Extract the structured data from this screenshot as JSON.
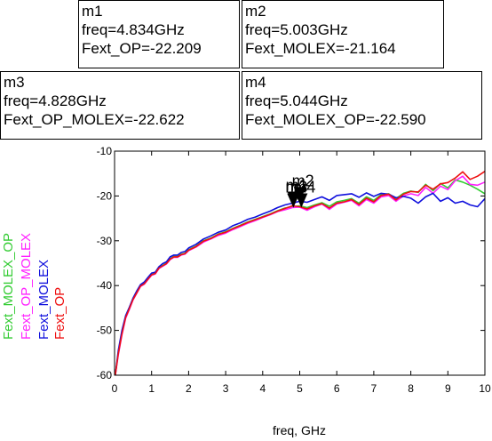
{
  "markers": [
    {
      "name": "m1",
      "freq": "freq=4.834GHz",
      "value": "Fext_OP=-22.209"
    },
    {
      "name": "m2",
      "freq": "freq=5.003GHz",
      "value": "Fext_MOLEX=-21.164"
    },
    {
      "name": "m3",
      "freq": "freq=4.828GHz",
      "value": "Fext_OP_MOLEX=-22.622"
    },
    {
      "name": "m4",
      "freq": "freq=5.044GHz",
      "value": "Fext_MOLEX_OP=-22.590"
    }
  ],
  "chart_data": {
    "type": "line",
    "xlabel": "freq, GHz",
    "ylabel": "",
    "xlim": [
      0,
      10
    ],
    "ylim": [
      -60,
      -10
    ],
    "xticks": [
      "0",
      "1",
      "2",
      "3",
      "4",
      "5",
      "6",
      "7",
      "8",
      "9",
      "10"
    ],
    "yticks": [
      "-10",
      "-20",
      "-30",
      "-40",
      "-50",
      "-60"
    ],
    "grid": false,
    "legend_placement": "left, rotated vertical",
    "series": [
      {
        "name": "Fext_MOLEX_OP",
        "color": "#33cc33",
        "x": [
          0.02,
          0.1,
          0.2,
          0.3,
          0.4,
          0.5,
          0.6,
          0.7,
          0.8,
          0.9,
          1.0,
          1.1,
          1.2,
          1.3,
          1.4,
          1.5,
          1.6,
          1.7,
          1.8,
          1.9,
          2.0,
          2.2,
          2.4,
          2.6,
          2.8,
          3.0,
          3.2,
          3.4,
          3.6,
          3.8,
          4.0,
          4.2,
          4.4,
          4.6,
          4.8,
          5.0,
          5.2,
          5.4,
          5.6,
          5.8,
          6.0,
          6.2,
          6.4,
          6.6,
          6.8,
          7.0,
          7.2,
          7.4,
          7.6,
          7.8,
          8.0,
          8.2,
          8.4,
          8.6,
          8.8,
          9.0,
          9.2,
          9.4,
          9.6,
          9.8,
          10.0
        ],
        "y": [
          -60,
          -55,
          -50.5,
          -47,
          -45,
          -43,
          -41.5,
          -40,
          -39.5,
          -38.5,
          -37.5,
          -37.2,
          -36,
          -35.5,
          -35,
          -34,
          -33.5,
          -33.5,
          -33,
          -32.8,
          -32,
          -31.2,
          -30,
          -29.4,
          -28.5,
          -28,
          -27.2,
          -26.5,
          -25.8,
          -25.2,
          -24.6,
          -24,
          -23.3,
          -22.7,
          -22.4,
          -22.2,
          -22.6,
          -22,
          -21.5,
          -22.3,
          -21.3,
          -21,
          -20.6,
          -21.6,
          -20.2,
          -21,
          -19.7,
          -19.5,
          -20.6,
          -19.4,
          -18.9,
          -19.2,
          -17.4,
          -18.8,
          -17.2,
          -18.2,
          -16.4,
          -16.9,
          -17.6,
          -18.5,
          -19.5
        ]
      },
      {
        "name": "Fext_OP_MOLEX",
        "color": "#ff22ff",
        "x": [
          0.02,
          0.1,
          0.2,
          0.3,
          0.4,
          0.5,
          0.6,
          0.7,
          0.8,
          0.9,
          1.0,
          1.1,
          1.2,
          1.3,
          1.4,
          1.5,
          1.6,
          1.7,
          1.8,
          1.9,
          2.0,
          2.2,
          2.4,
          2.6,
          2.8,
          3.0,
          3.2,
          3.4,
          3.6,
          3.8,
          4.0,
          4.2,
          4.4,
          4.6,
          4.8,
          5.0,
          5.2,
          5.4,
          5.6,
          5.8,
          6.0,
          6.2,
          6.4,
          6.6,
          6.8,
          7.0,
          7.2,
          7.4,
          7.6,
          7.8,
          8.0,
          8.2,
          8.4,
          8.6,
          8.8,
          9.0,
          9.2,
          9.4,
          9.6,
          9.8,
          10.0
        ],
        "y": [
          -60,
          -55.5,
          -51,
          -47.3,
          -45.3,
          -43.2,
          -41.7,
          -40.2,
          -39.7,
          -38.7,
          -37.7,
          -37.4,
          -36.2,
          -35.7,
          -35.2,
          -34.2,
          -33.7,
          -33.7,
          -33.2,
          -33,
          -32.2,
          -31.4,
          -30.3,
          -29.6,
          -28.8,
          -28.3,
          -27.5,
          -26.8,
          -26.1,
          -25.5,
          -24.8,
          -24.2,
          -23.5,
          -23.1,
          -22.6,
          -22.5,
          -23.2,
          -22.4,
          -21.8,
          -23,
          -21.8,
          -21.4,
          -21,
          -22.2,
          -20.8,
          -21.6,
          -20.2,
          -19.9,
          -21.2,
          -20,
          -19.5,
          -19.9,
          -18.1,
          -19.4,
          -17.8,
          -18.6,
          -16.6,
          -15.6,
          -17.4,
          -17.6,
          -16.9
        ]
      },
      {
        "name": "Fext_MOLEX",
        "color": "#1010dd",
        "x": [
          0.02,
          0.1,
          0.2,
          0.3,
          0.4,
          0.5,
          0.6,
          0.7,
          0.8,
          0.9,
          1.0,
          1.1,
          1.2,
          1.3,
          1.4,
          1.5,
          1.6,
          1.7,
          1.8,
          1.9,
          2.0,
          2.2,
          2.4,
          2.6,
          2.8,
          3.0,
          3.2,
          3.4,
          3.6,
          3.8,
          4.0,
          4.2,
          4.4,
          4.6,
          4.8,
          5.0,
          5.2,
          5.4,
          5.6,
          5.8,
          6.0,
          6.2,
          6.4,
          6.6,
          6.8,
          7.0,
          7.2,
          7.4,
          7.6,
          7.8,
          8.0,
          8.2,
          8.4,
          8.6,
          8.8,
          9.0,
          9.2,
          9.4,
          9.6,
          9.8,
          10.0
        ],
        "y": [
          -60,
          -54.5,
          -50,
          -46.7,
          -44.8,
          -42.8,
          -41.2,
          -39.8,
          -39.2,
          -38.2,
          -37.2,
          -37,
          -35.8,
          -35.1,
          -34.7,
          -33.6,
          -33.2,
          -33.2,
          -32.6,
          -32.4,
          -31.6,
          -30.8,
          -29.6,
          -28.9,
          -28.1,
          -27.6,
          -26.6,
          -26,
          -25.2,
          -24.7,
          -24,
          -23.4,
          -22.6,
          -22,
          -21.6,
          -21.2,
          -21.4,
          -20.8,
          -20.2,
          -21,
          -19.9,
          -19.7,
          -19.5,
          -20.3,
          -19.3,
          -20.1,
          -19.4,
          -19.6,
          -20.4,
          -20.1,
          -20.5,
          -21.6,
          -20.2,
          -19.4,
          -21.2,
          -20.4,
          -21.6,
          -21.2,
          -22,
          -22.4,
          -20.6
        ]
      },
      {
        "name": "Fext_OP",
        "color": "#ee1111",
        "x": [
          0.02,
          0.1,
          0.2,
          0.3,
          0.4,
          0.5,
          0.6,
          0.7,
          0.8,
          0.9,
          1.0,
          1.1,
          1.2,
          1.3,
          1.4,
          1.5,
          1.6,
          1.7,
          1.8,
          1.9,
          2.0,
          2.2,
          2.4,
          2.6,
          2.8,
          3.0,
          3.2,
          3.4,
          3.6,
          3.8,
          4.0,
          4.2,
          4.4,
          4.6,
          4.8,
          5.0,
          5.2,
          5.4,
          5.6,
          5.8,
          6.0,
          6.2,
          6.4,
          6.6,
          6.8,
          7.0,
          7.2,
          7.4,
          7.6,
          7.8,
          8.0,
          8.2,
          8.4,
          8.6,
          8.8,
          9.0,
          9.2,
          9.4,
          9.6,
          9.8,
          10.0
        ],
        "y": [
          -60,
          -55.2,
          -50.8,
          -47.1,
          -45.1,
          -43.1,
          -41.6,
          -40.1,
          -39.6,
          -38.6,
          -37.6,
          -37.3,
          -36.1,
          -35.6,
          -35.1,
          -34.1,
          -33.6,
          -33.6,
          -33.1,
          -32.9,
          -32.1,
          -31.3,
          -30.1,
          -29.5,
          -28.6,
          -28.1,
          -27.3,
          -26.6,
          -25.9,
          -25.3,
          -24.7,
          -24.1,
          -23.4,
          -22.8,
          -22.2,
          -22.4,
          -22.9,
          -22.2,
          -21.7,
          -22.7,
          -21.6,
          -21.3,
          -20.8,
          -21.9,
          -20.5,
          -21.3,
          -19.9,
          -19.6,
          -20.9,
          -19.6,
          -19,
          -19.1,
          -17.6,
          -18.5,
          -17.3,
          -17,
          -16,
          -14.6,
          -16.3,
          -15.6,
          -14.5
        ]
      }
    ]
  }
}
